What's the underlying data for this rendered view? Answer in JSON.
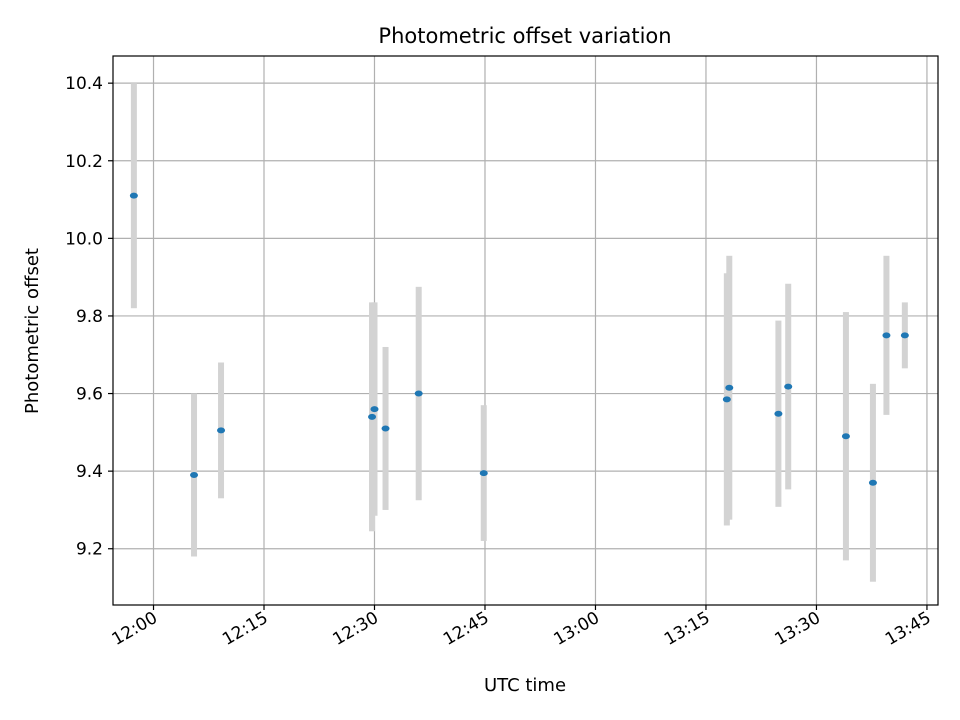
{
  "chart_data": {
    "type": "scatter",
    "title": "Photometric offset variation",
    "xlabel": "UTC time",
    "ylabel": "Photometric offset",
    "xlim": [
      "11:54:30",
      "13:46:30"
    ],
    "ylim": [
      9.055,
      10.47
    ],
    "xticks": [
      "12:00",
      "12:15",
      "12:30",
      "12:45",
      "13:00",
      "13:15",
      "13:30",
      "13:45"
    ],
    "yticks": [
      "9.2",
      "9.4",
      "9.6",
      "9.8",
      "10.0",
      "10.2",
      "10.4"
    ],
    "grid": true,
    "points": [
      {
        "time": "11:57:20",
        "y": 10.11,
        "err": 0.29
      },
      {
        "time": "12:05:30",
        "y": 9.39,
        "err": 0.21
      },
      {
        "time": "12:09:10",
        "y": 9.505,
        "err": 0.175
      },
      {
        "time": "12:29:40",
        "y": 9.54,
        "err": 0.295
      },
      {
        "time": "12:30:00",
        "y": 9.56,
        "err": 0.275
      },
      {
        "time": "12:31:30",
        "y": 9.51,
        "err": 0.21
      },
      {
        "time": "12:36:00",
        "y": 9.6,
        "err": 0.275
      },
      {
        "time": "12:44:50",
        "y": 9.395,
        "err": 0.175
      },
      {
        "time": "13:17:50",
        "y": 9.585,
        "err": 0.325
      },
      {
        "time": "13:18:10",
        "y": 9.615,
        "err": 0.34
      },
      {
        "time": "13:24:50",
        "y": 9.548,
        "err": 0.24
      },
      {
        "time": "13:26:10",
        "y": 9.618,
        "err": 0.265
      },
      {
        "time": "13:34:00",
        "y": 9.49,
        "err": 0.32
      },
      {
        "time": "13:37:40",
        "y": 9.37,
        "err": 0.255
      },
      {
        "time": "13:39:30",
        "y": 9.75,
        "err": 0.205
      },
      {
        "time": "13:42:00",
        "y": 9.75,
        "err": 0.085
      }
    ],
    "colors": {
      "marker": "#1f77b4",
      "errorbar": "#d3d3d3",
      "grid": "#b0b0b0",
      "axes": "#000000"
    }
  }
}
